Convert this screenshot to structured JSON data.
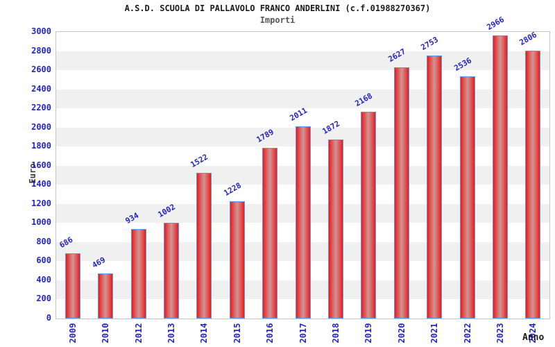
{
  "header": {
    "title": "A.S.D. SCUOLA DI PALLAVOLO FRANCO ANDERLINI (c.f.01988270367)",
    "subtitle": "Importi"
  },
  "chart_data": {
    "type": "bar",
    "title": "A.S.D. SCUOLA DI PALLAVOLO FRANCO ANDERLINI (c.f.01988270367)",
    "subtitle": "Importi",
    "xlabel": "Anno",
    "ylabel": "Euro",
    "categories": [
      "2009",
      "2010",
      "2012",
      "2013",
      "2014",
      "2015",
      "2016",
      "2017",
      "2018",
      "2019",
      "2020",
      "2021",
      "2022",
      "2023",
      "2024"
    ],
    "values": [
      686,
      469,
      934,
      1002,
      1522,
      1228,
      1789,
      2011,
      1872,
      2168,
      2627,
      2753,
      2536,
      2966,
      2806
    ],
    "ylim": [
      0,
      3000
    ],
    "ytick_step": 200,
    "grid": "alternating-horizontal-bands",
    "legend": "none",
    "colors": {
      "bar_edge": "#ee1616",
      "bar_mid": "#e24a4a",
      "bar_center": "#d09595",
      "bar_border": "#5a9ce8",
      "axis_text": "#2424c6",
      "band_gray": "#f0f0f0",
      "band_white": "#ffffff",
      "plot_border": "#c6c6c6",
      "title_text": "#1a1a1a",
      "subtitle_text": "#585858",
      "axis_title_text": "#3c3c3c"
    }
  }
}
